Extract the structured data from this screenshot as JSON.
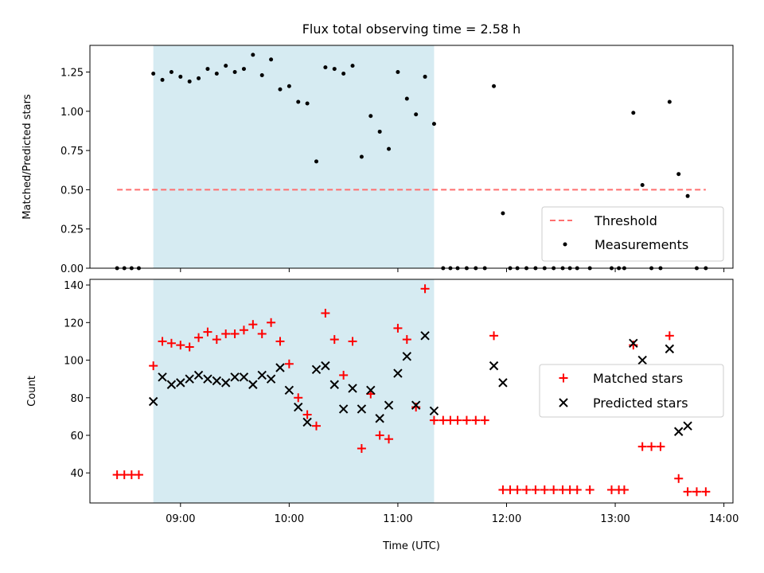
{
  "chart_data": [
    {
      "type": "scatter",
      "title": "Flux total observing time = 2.58 h",
      "ylabel": "Matched/Predicted stars",
      "xlabel": "",
      "ylim": [
        0,
        1.42
      ],
      "xlim": [
        "08:10",
        "14:05"
      ],
      "yticks": [
        0.0,
        0.25,
        0.5,
        0.75,
        1.0,
        1.25
      ],
      "yticklabels": [
        "0.00",
        "0.25",
        "0.50",
        "0.75",
        "1.00",
        "1.25"
      ],
      "highlight_span": [
        "08:45",
        "11:20"
      ],
      "highlight_color": "#add8e6",
      "legend_position": "lower-right",
      "legend": [
        {
          "label": "Threshold",
          "marker": "dashed-line",
          "color": "#ff6f6f"
        },
        {
          "label": "Measurements",
          "marker": "dot",
          "color": "#000000"
        }
      ],
      "threshold": {
        "value": 0.5,
        "x_start": "08:25",
        "x_end": "13:50",
        "color": "#ff6f6f"
      },
      "series": [
        {
          "marker": "dot",
          "color": "#000000",
          "points": [
            [
              "08:25",
              0.0
            ],
            [
              "08:29",
              0.0
            ],
            [
              "08:33",
              0.0
            ],
            [
              "08:37",
              0.0
            ],
            [
              "08:45",
              1.24
            ],
            [
              "08:50",
              1.2
            ],
            [
              "08:55",
              1.25
            ],
            [
              "09:00",
              1.22
            ],
            [
              "09:05",
              1.19
            ],
            [
              "09:10",
              1.21
            ],
            [
              "09:15",
              1.27
            ],
            [
              "09:20",
              1.24
            ],
            [
              "09:25",
              1.29
            ],
            [
              "09:30",
              1.25
            ],
            [
              "09:35",
              1.27
            ],
            [
              "09:40",
              1.36
            ],
            [
              "09:45",
              1.23
            ],
            [
              "09:50",
              1.33
            ],
            [
              "09:55",
              1.14
            ],
            [
              "10:00",
              1.16
            ],
            [
              "10:05",
              1.06
            ],
            [
              "10:10",
              1.05
            ],
            [
              "10:15",
              0.68
            ],
            [
              "10:20",
              1.28
            ],
            [
              "10:25",
              1.27
            ],
            [
              "10:30",
              1.24
            ],
            [
              "10:35",
              1.29
            ],
            [
              "10:40",
              0.71
            ],
            [
              "10:45",
              0.97
            ],
            [
              "10:50",
              0.87
            ],
            [
              "10:55",
              0.76
            ],
            [
              "11:00",
              1.25
            ],
            [
              "11:05",
              1.08
            ],
            [
              "11:10",
              0.98
            ],
            [
              "11:15",
              1.22
            ],
            [
              "11:20",
              0.92
            ],
            [
              "11:25",
              0.0
            ],
            [
              "11:29",
              0.0
            ],
            [
              "11:33",
              0.0
            ],
            [
              "11:38",
              0.0
            ],
            [
              "11:43",
              0.0
            ],
            [
              "11:48",
              0.0
            ],
            [
              "11:53",
              1.16
            ],
            [
              "11:58",
              0.35
            ],
            [
              "12:02",
              0.0
            ],
            [
              "12:06",
              0.0
            ],
            [
              "12:11",
              0.0
            ],
            [
              "12:16",
              0.0
            ],
            [
              "12:21",
              0.0
            ],
            [
              "12:26",
              0.0
            ],
            [
              "12:31",
              0.0
            ],
            [
              "12:35",
              0.0
            ],
            [
              "12:39",
              0.0
            ],
            [
              "12:46",
              0.0
            ],
            [
              "12:58",
              0.0
            ],
            [
              "13:02",
              0.0
            ],
            [
              "13:05",
              0.0
            ],
            [
              "13:10",
              0.99
            ],
            [
              "13:15",
              0.53
            ],
            [
              "13:20",
              0.0
            ],
            [
              "13:25",
              0.0
            ],
            [
              "13:30",
              1.06
            ],
            [
              "13:35",
              0.6
            ],
            [
              "13:40",
              0.46
            ],
            [
              "13:45",
              0.0
            ],
            [
              "13:50",
              0.0
            ]
          ]
        }
      ]
    },
    {
      "type": "scatter",
      "title": "",
      "xlabel": "Time (UTC)",
      "ylabel": "Count",
      "ylim": [
        24,
        143
      ],
      "xlim": [
        "08:10",
        "14:05"
      ],
      "yticks": [
        40,
        60,
        80,
        100,
        120,
        140
      ],
      "yticklabels": [
        "40",
        "60",
        "80",
        "100",
        "120",
        "140"
      ],
      "xticks": [
        "09:00",
        "10:00",
        "11:00",
        "12:00",
        "13:00",
        "14:00"
      ],
      "highlight_span": [
        "08:45",
        "11:20"
      ],
      "highlight_color": "#add8e6",
      "legend_position": "center-right",
      "legend": [
        {
          "label": "Matched stars",
          "marker": "plus",
          "color": "#ff0000"
        },
        {
          "label": "Predicted stars",
          "marker": "x",
          "color": "#000000"
        }
      ],
      "series": [
        {
          "name": "Matched stars",
          "marker": "plus",
          "color": "#ff0000",
          "points": [
            [
              "08:25",
              39
            ],
            [
              "08:29",
              39
            ],
            [
              "08:33",
              39
            ],
            [
              "08:37",
              39
            ],
            [
              "08:45",
              97
            ],
            [
              "08:50",
              110
            ],
            [
              "08:55",
              109
            ],
            [
              "09:00",
              108
            ],
            [
              "09:05",
              107
            ],
            [
              "09:10",
              112
            ],
            [
              "09:15",
              115
            ],
            [
              "09:20",
              111
            ],
            [
              "09:25",
              114
            ],
            [
              "09:30",
              114
            ],
            [
              "09:35",
              116
            ],
            [
              "09:40",
              119
            ],
            [
              "09:45",
              114
            ],
            [
              "09:50",
              120
            ],
            [
              "09:55",
              110
            ],
            [
              "10:00",
              98
            ],
            [
              "10:05",
              80
            ],
            [
              "10:10",
              71
            ],
            [
              "10:15",
              65
            ],
            [
              "10:20",
              125
            ],
            [
              "10:25",
              111
            ],
            [
              "10:30",
              92
            ],
            [
              "10:35",
              110
            ],
            [
              "10:40",
              53
            ],
            [
              "10:45",
              82
            ],
            [
              "10:50",
              60
            ],
            [
              "10:55",
              58
            ],
            [
              "11:00",
              117
            ],
            [
              "11:05",
              111
            ],
            [
              "11:10",
              75
            ],
            [
              "11:15",
              138
            ],
            [
              "11:20",
              68
            ],
            [
              "11:25",
              68
            ],
            [
              "11:29",
              68
            ],
            [
              "11:33",
              68
            ],
            [
              "11:38",
              68
            ],
            [
              "11:43",
              68
            ],
            [
              "11:48",
              68
            ],
            [
              "11:53",
              113
            ],
            [
              "11:58",
              31
            ],
            [
              "12:02",
              31
            ],
            [
              "12:06",
              31
            ],
            [
              "12:11",
              31
            ],
            [
              "12:16",
              31
            ],
            [
              "12:21",
              31
            ],
            [
              "12:26",
              31
            ],
            [
              "12:31",
              31
            ],
            [
              "12:35",
              31
            ],
            [
              "12:39",
              31
            ],
            [
              "12:46",
              31
            ],
            [
              "12:58",
              31
            ],
            [
              "13:02",
              31
            ],
            [
              "13:05",
              31
            ],
            [
              "13:10",
              108
            ],
            [
              "13:15",
              54
            ],
            [
              "13:20",
              54
            ],
            [
              "13:25",
              54
            ],
            [
              "13:30",
              113
            ],
            [
              "13:35",
              37
            ],
            [
              "13:40",
              30
            ],
            [
              "13:45",
              30
            ],
            [
              "13:50",
              30
            ]
          ]
        },
        {
          "name": "Predicted stars",
          "marker": "x",
          "color": "#000000",
          "points": [
            [
              "08:45",
              78
            ],
            [
              "08:50",
              91
            ],
            [
              "08:55",
              87
            ],
            [
              "09:00",
              88
            ],
            [
              "09:05",
              90
            ],
            [
              "09:10",
              92
            ],
            [
              "09:15",
              90
            ],
            [
              "09:20",
              89
            ],
            [
              "09:25",
              88
            ],
            [
              "09:30",
              91
            ],
            [
              "09:35",
              91
            ],
            [
              "09:40",
              87
            ],
            [
              "09:45",
              92
            ],
            [
              "09:50",
              90
            ],
            [
              "09:55",
              96
            ],
            [
              "10:00",
              84
            ],
            [
              "10:05",
              75
            ],
            [
              "10:10",
              67
            ],
            [
              "10:15",
              95
            ],
            [
              "10:20",
              97
            ],
            [
              "10:25",
              87
            ],
            [
              "10:30",
              74
            ],
            [
              "10:35",
              85
            ],
            [
              "10:40",
              74
            ],
            [
              "10:45",
              84
            ],
            [
              "10:50",
              69
            ],
            [
              "10:55",
              76
            ],
            [
              "11:00",
              93
            ],
            [
              "11:05",
              102
            ],
            [
              "11:10",
              76
            ],
            [
              "11:15",
              113
            ],
            [
              "11:20",
              73
            ],
            [
              "11:53",
              97
            ],
            [
              "11:58",
              88
            ],
            [
              "13:10",
              109
            ],
            [
              "13:15",
              100
            ],
            [
              "13:30",
              106
            ],
            [
              "13:35",
              62
            ],
            [
              "13:40",
              65
            ]
          ]
        }
      ]
    }
  ]
}
